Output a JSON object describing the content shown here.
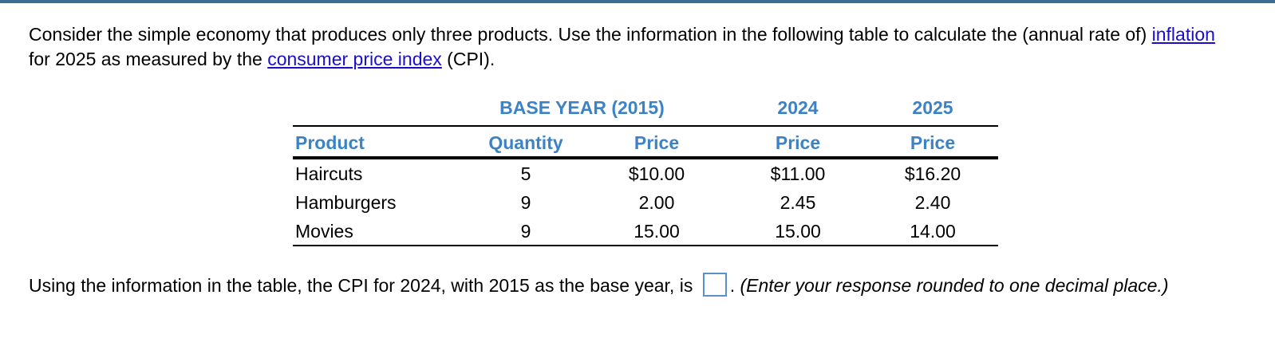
{
  "question": {
    "part1": "Consider the simple economy that produces only three products. Use the information in the following table to calculate the (annual rate of) ",
    "link1": "inflation",
    "part2": " for 2025 as measured by the ",
    "link2": "consumer price index",
    "part3": " (CPI)."
  },
  "table": {
    "group_headers": {
      "base_year": "BASE YEAR (2015)",
      "year_2024": "2024",
      "year_2025": "2025"
    },
    "column_headers": {
      "product": "Product",
      "quantity": "Quantity",
      "price_base": "Price",
      "price_2024": "Price",
      "price_2025": "Price"
    },
    "rows": [
      {
        "product": "Haircuts",
        "quantity": "5",
        "price_base": "$10.00",
        "price_2024": "$11.00",
        "price_2025": "$16.20"
      },
      {
        "product": "Hamburgers",
        "quantity": "9",
        "price_base": "2.00",
        "price_2024": "2.45",
        "price_2025": "2.40"
      },
      {
        "product": "Movies",
        "quantity": "9",
        "price_base": "15.00",
        "price_2024": "15.00",
        "price_2025": "14.00"
      }
    ]
  },
  "answer": {
    "prompt": "Using the information in the table, the CPI for 2024, with 2015 as the base year, is ",
    "input_value": "",
    "period": ". ",
    "hint": "(Enter your response rounded to one decimal place.)"
  },
  "colors": {
    "header_blue": "#3c82c4",
    "link_blue": "#1a0dcc",
    "top_bar": "#3c6e93"
  }
}
